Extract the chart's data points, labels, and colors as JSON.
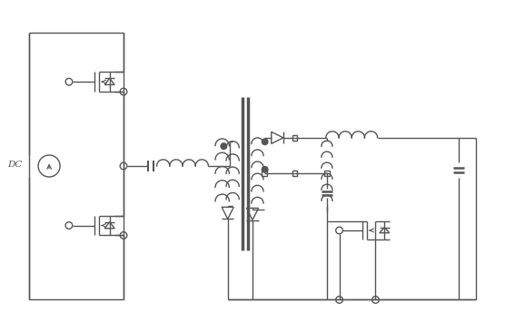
{
  "bg_color": "#ffffff",
  "line_color": "#555555",
  "line_width": 1.0,
  "figsize": [
    5.56,
    3.66
  ],
  "dpi": 100,
  "xlim": [
    0,
    10
  ],
  "ylim": [
    0,
    6.6
  ]
}
